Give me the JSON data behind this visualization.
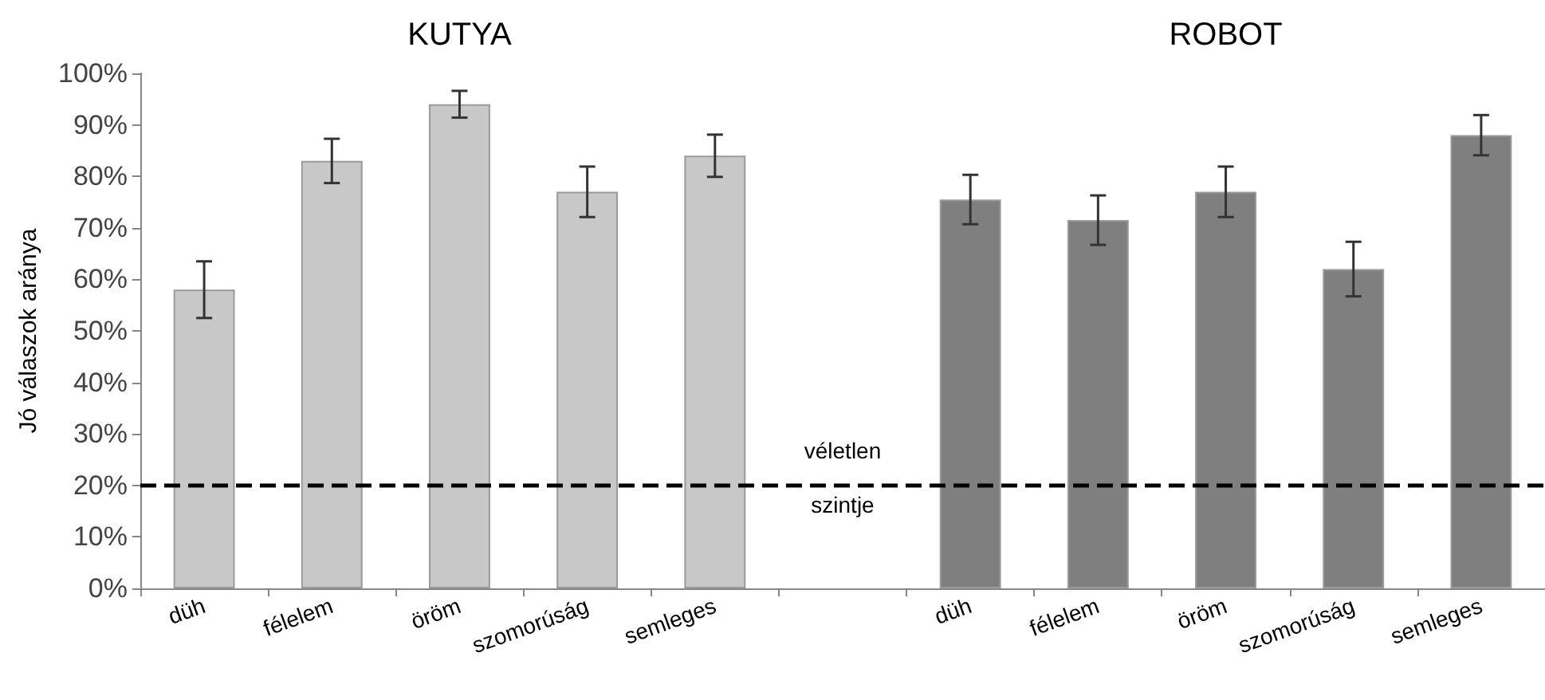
{
  "chart_data": {
    "type": "bar",
    "ylabel": "Jó válaszok aránya",
    "categories": [
      "düh",
      "félelem",
      "öröm",
      "szomorúság",
      "semleges",
      null,
      "düh",
      "félelem",
      "öröm",
      "szomorúság",
      "semleges"
    ],
    "values": [
      58,
      83,
      94,
      77,
      84,
      null,
      75.5,
      71.5,
      77,
      62,
      88
    ],
    "errors": [
      5.5,
      4.3,
      2.6,
      4.9,
      4.1,
      null,
      4.8,
      4.8,
      4.9,
      5.3,
      3.9
    ],
    "colors": [
      "#c8c8c8",
      "#c8c8c8",
      "#c8c8c8",
      "#c8c8c8",
      "#c8c8c8",
      "#ffffff",
      "#7f7f7f",
      "#7f7f7f",
      "#7f7f7f",
      "#7f7f7f",
      "#7f7f7f"
    ],
    "annotations": [
      "KUTYA",
      "ROBOT"
    ],
    "ylim": [
      0,
      100
    ],
    "yticks": [
      {
        "value": 0,
        "label": "0%"
      },
      {
        "value": 10,
        "label": "10%"
      },
      {
        "value": 20,
        "label": "20%"
      },
      {
        "value": 30,
        "label": "30%"
      },
      {
        "value": 40,
        "label": "40%"
      },
      {
        "value": 50,
        "label": "50%"
      },
      {
        "value": 60,
        "label": "60%"
      },
      {
        "value": 70,
        "label": "70%"
      },
      {
        "value": 80,
        "label": "80%"
      },
      {
        "value": 90,
        "label": "90%"
      },
      {
        "value": 100,
        "label": "100%"
      }
    ],
    "ref_lines": [
      {
        "axis": "y",
        "value": 20,
        "label": "véletlen szintje",
        "color": "#000000",
        "line_style": "dashed"
      }
    ],
    "grid": false
  }
}
